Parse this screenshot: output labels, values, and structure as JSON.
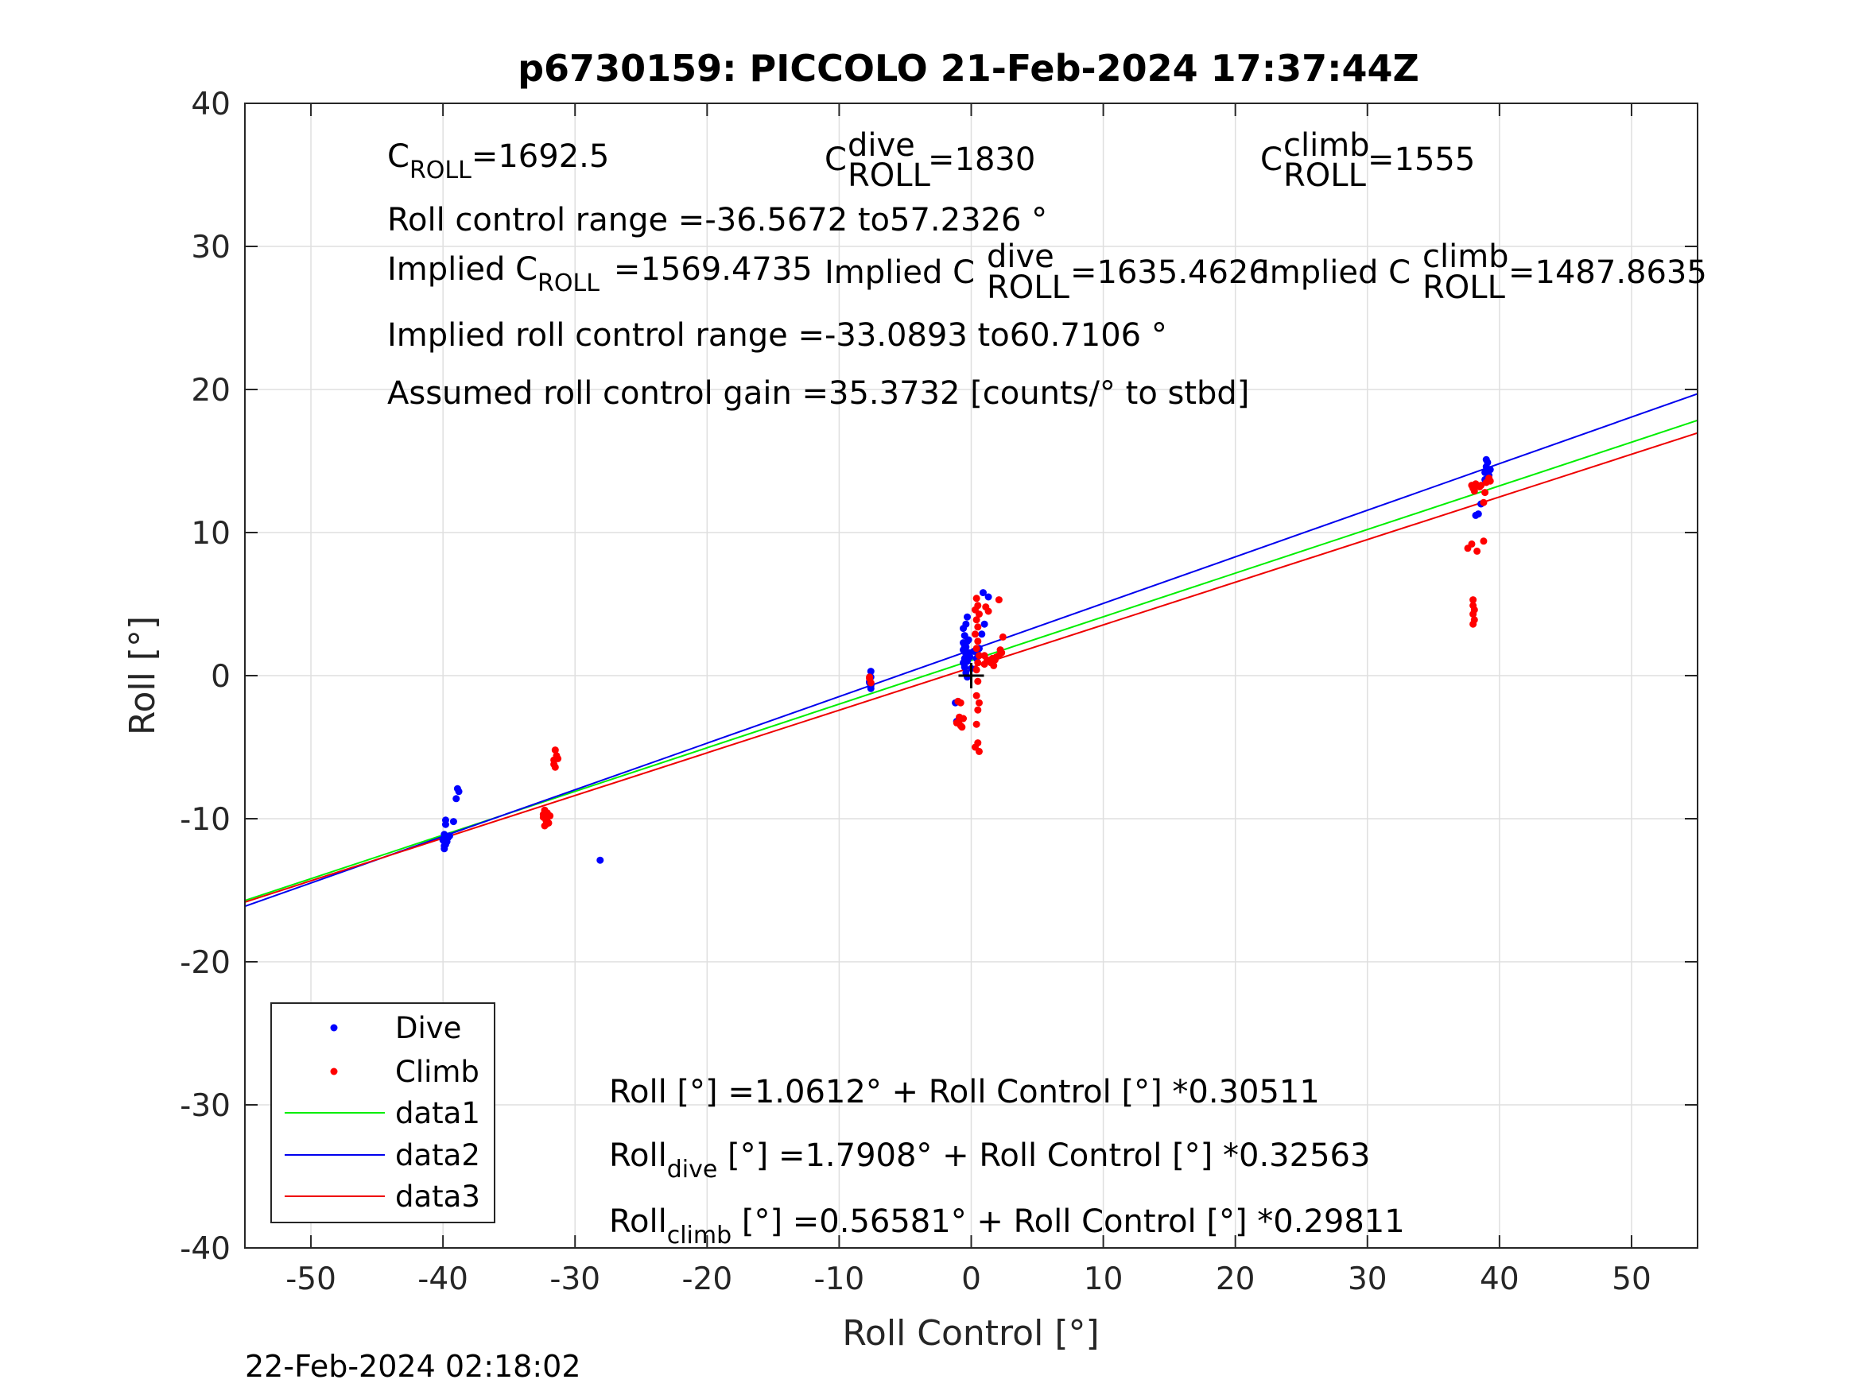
{
  "chart_data": {
    "type": "scatter",
    "title": "p6730159: PICCOLO 21-Feb-2024 17:37:44Z",
    "xlabel": "Roll Control [°]",
    "ylabel": "Roll [°]",
    "xlim": [
      -55,
      55
    ],
    "ylim": [
      -40,
      40
    ],
    "xticks": [
      -50,
      -40,
      -30,
      -20,
      -10,
      0,
      10,
      20,
      30,
      40,
      50
    ],
    "yticks": [
      -40,
      -30,
      -20,
      -10,
      0,
      10,
      20,
      30,
      40
    ],
    "xtick_labels": [
      "-50",
      "-40",
      "-30",
      "-20",
      "-10",
      "0",
      "10",
      "20",
      "30",
      "40",
      "50"
    ],
    "ytick_labels": [
      "-40",
      "-30",
      "-20",
      "-10",
      "0",
      "10",
      "20",
      "30",
      "40"
    ],
    "grid": true,
    "legend_placement": "bottom-left",
    "footer_timestamp": "22-Feb-2024 02:18:02",
    "annotations": {
      "c_roll": {
        "base": "C",
        "sub": "ROLL",
        "value": "=1692.5"
      },
      "c_roll_dive": {
        "base": "C",
        "sup": "dive",
        "sub": "ROLL",
        "value": "=1830"
      },
      "c_roll_climb": {
        "base": "C",
        "sup": "climb",
        "sub": "ROLL",
        "value": "=1555"
      },
      "roll_range": "Roll control range =-36.5672 to57.2326 °",
      "implied_c_roll": {
        "prefix": "Implied C",
        "sub": "ROLL",
        "value": "=1569.4735"
      },
      "implied_c_roll_dive": {
        "prefix": "Implied C",
        "sup": "dive",
        "sub": "ROLL",
        "value": "=1635.4626"
      },
      "implied_c_roll_climb": {
        "prefix": "Implied C",
        "sup": "climb",
        "sub": "ROLL",
        "value": "=1487.8635"
      },
      "implied_range": "Implied roll control range =-33.0893 to60.7106 °",
      "gain": "Assumed roll control gain =35.3732 [counts/° to stbd]",
      "fit_all": "Roll [°] =1.0612° + Roll Control [°] *0.30511",
      "fit_dive": {
        "base": "Roll",
        "sub": "dive",
        "rest": " [°] =1.7908° + Roll Control [°] *0.32563"
      },
      "fit_climb": {
        "base": "Roll",
        "sub": "climb",
        "rest": " [°] =0.56581° + Roll Control [°] *0.29811"
      }
    },
    "lines": [
      {
        "name": "data1",
        "color": "#00ee00",
        "intercept": 1.0612,
        "slope": 0.30511
      },
      {
        "name": "data2",
        "color": "#0000ee",
        "intercept": 1.7908,
        "slope": 0.32563
      },
      {
        "name": "data3",
        "color": "#ee0000",
        "intercept": 0.56581,
        "slope": 0.29811
      }
    ],
    "series": [
      {
        "name": "Dive",
        "color": "#0000ff",
        "points": [
          [
            -39.8,
            -10.1
          ],
          [
            -39.8,
            -10.4
          ],
          [
            -39.9,
            -11.1
          ],
          [
            -40.0,
            -11.5
          ],
          [
            -39.8,
            -11.8
          ],
          [
            -39.9,
            -12.1
          ],
          [
            -39.6,
            -11.3
          ],
          [
            -39.7,
            -11.6
          ],
          [
            -39.5,
            -11.2
          ],
          [
            -39.9,
            -11.9
          ],
          [
            -39.2,
            -10.2
          ],
          [
            -38.9,
            -7.9
          ],
          [
            -38.8,
            -8.1
          ],
          [
            -39.0,
            -8.6
          ],
          [
            -28.1,
            -12.9
          ],
          [
            -7.6,
            0.3
          ],
          [
            -7.6,
            -0.1
          ],
          [
            -7.7,
            -0.4
          ],
          [
            -7.6,
            -0.7
          ],
          [
            -7.6,
            -0.9
          ],
          [
            -7.7,
            -0.5
          ],
          [
            -0.6,
            2.3
          ],
          [
            -0.5,
            2.1
          ],
          [
            -0.6,
            1.8
          ],
          [
            -0.4,
            1.5
          ],
          [
            -0.5,
            1.2
          ],
          [
            -0.6,
            0.9
          ],
          [
            -0.3,
            2.4
          ],
          [
            -0.4,
            2.0
          ],
          [
            -0.2,
            1.6
          ],
          [
            -0.3,
            1.0
          ],
          [
            -0.5,
            0.6
          ],
          [
            -0.4,
            0.2
          ],
          [
            -0.3,
            -0.1
          ],
          [
            -0.6,
            3.3
          ],
          [
            -0.4,
            3.6
          ],
          [
            -0.3,
            4.1
          ],
          [
            -0.5,
            2.8
          ],
          [
            -0.2,
            2.5
          ],
          [
            -0.1,
            1.3
          ],
          [
            0.0,
            0.5
          ],
          [
            -1.0,
            -1.8
          ],
          [
            -1.2,
            -1.9
          ],
          [
            -0.9,
            -3.0
          ],
          [
            -1.1,
            -3.2
          ],
          [
            0.5,
            1.5
          ],
          [
            0.6,
            1.9
          ],
          [
            0.9,
            5.8
          ],
          [
            1.3,
            5.5
          ],
          [
            1.0,
            3.6
          ],
          [
            0.8,
            2.9
          ],
          [
            0.2,
            1.7
          ],
          [
            0.4,
            1.2
          ],
          [
            38.4,
            11.3
          ],
          [
            38.2,
            11.2
          ],
          [
            38.6,
            12.0
          ],
          [
            38.9,
            14.2
          ],
          [
            39.0,
            14.6
          ],
          [
            39.1,
            14.9
          ],
          [
            39.0,
            15.1
          ],
          [
            39.2,
            14.0
          ],
          [
            39.1,
            13.8
          ],
          [
            39.3,
            14.4
          ],
          [
            38.9,
            13.7
          ]
        ]
      },
      {
        "name": "Climb",
        "color": "#ff0000",
        "points": [
          [
            -32.3,
            -9.4
          ],
          [
            -32.1,
            -9.6
          ],
          [
            -32.4,
            -9.9
          ],
          [
            -32.2,
            -10.1
          ],
          [
            -32.0,
            -10.3
          ],
          [
            -32.3,
            -10.5
          ],
          [
            -32.1,
            -10.2
          ],
          [
            -32.4,
            -9.7
          ],
          [
            -31.9,
            -9.8
          ],
          [
            -32.2,
            -10.4
          ],
          [
            -31.5,
            -5.2
          ],
          [
            -31.4,
            -5.6
          ],
          [
            -31.6,
            -5.9
          ],
          [
            -31.3,
            -5.8
          ],
          [
            -31.6,
            -6.2
          ],
          [
            -31.5,
            -6.4
          ],
          [
            -7.7,
            -0.2
          ],
          [
            -7.6,
            -0.5
          ],
          [
            -7.7,
            -0.1
          ],
          [
            -0.9,
            -3.1
          ],
          [
            -1.1,
            -3.3
          ],
          [
            -0.8,
            -3.5
          ],
          [
            -0.7,
            -3.6
          ],
          [
            -0.9,
            -2.9
          ],
          [
            -0.6,
            -3.0
          ],
          [
            -1.0,
            -1.8
          ],
          [
            -0.8,
            -1.9
          ],
          [
            0.4,
            5.4
          ],
          [
            0.5,
            4.9
          ],
          [
            0.3,
            4.6
          ],
          [
            0.6,
            4.3
          ],
          [
            0.4,
            3.9
          ],
          [
            0.5,
            3.4
          ],
          [
            0.3,
            2.9
          ],
          [
            0.5,
            2.4
          ],
          [
            0.4,
            1.9
          ],
          [
            0.6,
            1.4
          ],
          [
            0.5,
            0.9
          ],
          [
            0.4,
            0.4
          ],
          [
            0.5,
            -0.4
          ],
          [
            0.4,
            -1.4
          ],
          [
            0.6,
            -1.9
          ],
          [
            0.5,
            -2.4
          ],
          [
            0.4,
            -3.4
          ],
          [
            0.5,
            -4.7
          ],
          [
            0.6,
            -5.3
          ],
          [
            0.3,
            -5.0
          ],
          [
            1.1,
            4.8
          ],
          [
            1.3,
            4.5
          ],
          [
            2.1,
            5.3
          ],
          [
            1.0,
            0.8
          ],
          [
            1.3,
            1.0
          ],
          [
            1.6,
            1.2
          ],
          [
            1.9,
            1.3
          ],
          [
            2.1,
            1.4
          ],
          [
            2.3,
            1.6
          ],
          [
            1.2,
            1.1
          ],
          [
            1.5,
            0.9
          ],
          [
            1.8,
            1.1
          ],
          [
            2.2,
            1.8
          ],
          [
            2.4,
            2.7
          ],
          [
            1.0,
            1.4
          ],
          [
            1.7,
            0.7
          ],
          [
            37.6,
            8.9
          ],
          [
            37.9,
            9.2
          ],
          [
            38.3,
            8.7
          ],
          [
            38.8,
            9.4
          ],
          [
            38.0,
            5.3
          ],
          [
            38.0,
            4.9
          ],
          [
            38.1,
            4.6
          ],
          [
            38.0,
            4.3
          ],
          [
            38.1,
            3.9
          ],
          [
            38.0,
            3.6
          ],
          [
            38.0,
            13.1
          ],
          [
            38.2,
            13.4
          ],
          [
            38.5,
            13.2
          ],
          [
            38.1,
            12.9
          ],
          [
            38.6,
            13.3
          ],
          [
            39.0,
            13.5
          ],
          [
            39.2,
            13.8
          ],
          [
            39.3,
            13.6
          ],
          [
            38.9,
            12.8
          ],
          [
            38.8,
            12.1
          ],
          [
            37.9,
            13.3
          ]
        ]
      }
    ],
    "cross_marker": {
      "x": 0,
      "y": 0,
      "color": "#000000"
    }
  }
}
